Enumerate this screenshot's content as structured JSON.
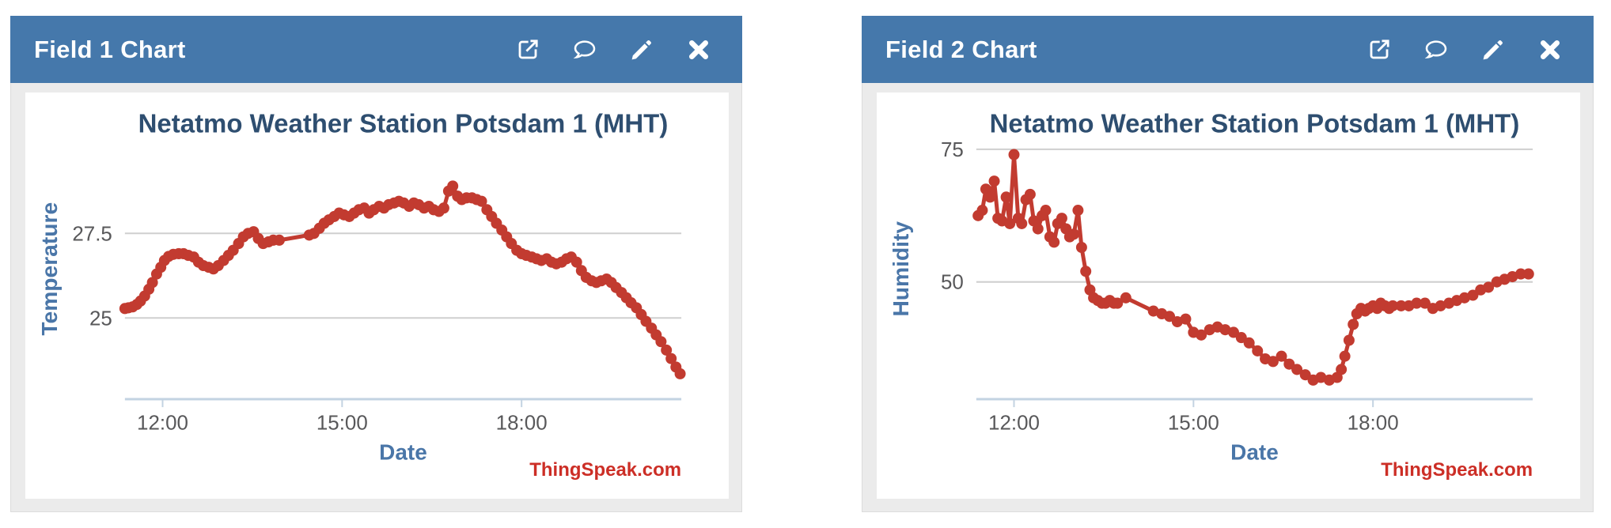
{
  "colors": {
    "header_bg": "#4578ab",
    "header_text": "#ffffff",
    "panel_frame": "#ebebeb",
    "chart_bg": "#ffffff",
    "series_red": "#c23b30",
    "chart_title": "#2e4e70",
    "axis_title_blue": "#4a76a8",
    "tick_gray": "#58585a",
    "grid_gray": "#cfcfcf",
    "axis_line_blue": "#c3d3e2",
    "watermark_red": "#cc2e26"
  },
  "widgets": [
    {
      "header": {
        "title": "Field 1 Chart",
        "icons": [
          "open-in-new-window-icon",
          "comment-icon",
          "edit-icon",
          "close-icon"
        ]
      }
    },
    {
      "header": {
        "title": "Field 2 Chart",
        "icons": [
          "open-in-new-window-icon",
          "comment-icon",
          "edit-icon",
          "close-icon"
        ]
      }
    }
  ],
  "chart_data": [
    {
      "type": "line",
      "title": "Netatmo Weather Station Potsdam 1 (MHT)",
      "xlabel": "Date",
      "ylabel": "Temperature",
      "watermark": "ThingSpeak.com",
      "legend": "none",
      "grid": "horizontal-only",
      "x_range": [
        11.37,
        20.67
      ],
      "x_ticks": [
        {
          "value": 12,
          "label": "12:00"
        },
        {
          "value": 15,
          "label": "15:00"
        },
        {
          "value": 18,
          "label": "18:00"
        }
      ],
      "y_range": [
        22.6,
        30.3
      ],
      "y_gridlines": [
        {
          "value": 25,
          "label": "25"
        },
        {
          "value": 27.5,
          "label": "27.5"
        }
      ],
      "series": [
        {
          "color": "#c23b30",
          "points": [
            [
              11.37,
              25.28
            ],
            [
              11.43,
              25.3
            ],
            [
              11.5,
              25.33
            ],
            [
              11.57,
              25.4
            ],
            [
              11.63,
              25.5
            ],
            [
              11.7,
              25.65
            ],
            [
              11.77,
              25.85
            ],
            [
              11.83,
              26.05
            ],
            [
              11.9,
              26.3
            ],
            [
              11.97,
              26.5
            ],
            [
              12.03,
              26.7
            ],
            [
              12.1,
              26.82
            ],
            [
              12.18,
              26.88
            ],
            [
              12.27,
              26.9
            ],
            [
              12.35,
              26.9
            ],
            [
              12.43,
              26.85
            ],
            [
              12.52,
              26.8
            ],
            [
              12.6,
              26.65
            ],
            [
              12.68,
              26.55
            ],
            [
              12.77,
              26.5
            ],
            [
              12.85,
              26.45
            ],
            [
              12.93,
              26.55
            ],
            [
              13.02,
              26.7
            ],
            [
              13.1,
              26.85
            ],
            [
              13.18,
              27.0
            ],
            [
              13.27,
              27.2
            ],
            [
              13.35,
              27.4
            ],
            [
              13.43,
              27.5
            ],
            [
              13.52,
              27.55
            ],
            [
              13.6,
              27.35
            ],
            [
              13.68,
              27.2
            ],
            [
              13.77,
              27.25
            ],
            [
              13.85,
              27.3
            ],
            [
              13.95,
              27.3
            ],
            [
              14.45,
              27.45
            ],
            [
              14.53,
              27.5
            ],
            [
              14.62,
              27.65
            ],
            [
              14.7,
              27.8
            ],
            [
              14.78,
              27.9
            ],
            [
              14.87,
              28.0
            ],
            [
              14.95,
              28.1
            ],
            [
              15.03,
              28.05
            ],
            [
              15.12,
              28.0
            ],
            [
              15.2,
              28.1
            ],
            [
              15.28,
              28.2
            ],
            [
              15.37,
              28.25
            ],
            [
              15.45,
              28.1
            ],
            [
              15.53,
              28.2
            ],
            [
              15.62,
              28.3
            ],
            [
              15.7,
              28.25
            ],
            [
              15.78,
              28.35
            ],
            [
              15.87,
              28.4
            ],
            [
              15.95,
              28.45
            ],
            [
              16.03,
              28.4
            ],
            [
              16.12,
              28.3
            ],
            [
              16.2,
              28.4
            ],
            [
              16.28,
              28.35
            ],
            [
              16.37,
              28.25
            ],
            [
              16.45,
              28.3
            ],
            [
              16.53,
              28.2
            ],
            [
              16.62,
              28.15
            ],
            [
              16.7,
              28.25
            ],
            [
              16.78,
              28.75
            ],
            [
              16.85,
              28.9
            ],
            [
              16.93,
              28.6
            ],
            [
              17.0,
              28.5
            ],
            [
              17.08,
              28.55
            ],
            [
              17.17,
              28.55
            ],
            [
              17.25,
              28.5
            ],
            [
              17.33,
              28.45
            ],
            [
              17.42,
              28.2
            ],
            [
              17.5,
              28.0
            ],
            [
              17.58,
              27.8
            ],
            [
              17.67,
              27.6
            ],
            [
              17.75,
              27.4
            ],
            [
              17.83,
              27.2
            ],
            [
              17.92,
              27.0
            ],
            [
              18.0,
              26.9
            ],
            [
              18.08,
              26.85
            ],
            [
              18.17,
              26.8
            ],
            [
              18.25,
              26.75
            ],
            [
              18.33,
              26.7
            ],
            [
              18.42,
              26.75
            ],
            [
              18.5,
              26.65
            ],
            [
              18.58,
              26.6
            ],
            [
              18.67,
              26.65
            ],
            [
              18.75,
              26.75
            ],
            [
              18.83,
              26.8
            ],
            [
              18.92,
              26.65
            ],
            [
              19.0,
              26.4
            ],
            [
              19.08,
              26.2
            ],
            [
              19.17,
              26.1
            ],
            [
              19.25,
              26.05
            ],
            [
              19.33,
              26.1
            ],
            [
              19.42,
              26.15
            ],
            [
              19.5,
              26.05
            ],
            [
              19.58,
              25.9
            ],
            [
              19.67,
              25.75
            ],
            [
              19.75,
              25.6
            ],
            [
              19.83,
              25.45
            ],
            [
              19.92,
              25.3
            ],
            [
              20.0,
              25.1
            ],
            [
              20.08,
              24.9
            ],
            [
              20.17,
              24.7
            ],
            [
              20.25,
              24.5
            ],
            [
              20.33,
              24.3
            ],
            [
              20.42,
              24.05
            ],
            [
              20.5,
              23.8
            ],
            [
              20.58,
              23.55
            ],
            [
              20.65,
              23.35
            ]
          ]
        }
      ]
    },
    {
      "type": "line",
      "title": "Netatmo Weather Station Potsdam 1 (MHT)",
      "xlabel": "Date",
      "ylabel": "Humidity",
      "watermark": "ThingSpeak.com",
      "legend": "none",
      "grid": "horizontal-only",
      "x_range": [
        11.37,
        20.67
      ],
      "x_ticks": [
        {
          "value": 12,
          "label": "12:00"
        },
        {
          "value": 15,
          "label": "15:00"
        },
        {
          "value": 18,
          "label": "18:00"
        }
      ],
      "y_range": [
        27.9,
        77.0
      ],
      "y_gridlines": [
        {
          "value": 50,
          "label": "50"
        },
        {
          "value": 75,
          "label": "75"
        }
      ],
      "series": [
        {
          "color": "#c23b30",
          "points": [
            [
              11.4,
              62.5
            ],
            [
              11.47,
              63.5
            ],
            [
              11.53,
              67.5
            ],
            [
              11.6,
              66.0
            ],
            [
              11.67,
              69.0
            ],
            [
              11.73,
              62.0
            ],
            [
              11.8,
              61.5
            ],
            [
              11.87,
              66.0
            ],
            [
              11.93,
              61.0
            ],
            [
              12.0,
              74.0
            ],
            [
              12.07,
              62.0
            ],
            [
              12.13,
              61.0
            ],
            [
              12.2,
              65.5
            ],
            [
              12.27,
              66.5
            ],
            [
              12.33,
              61.5
            ],
            [
              12.4,
              60.0
            ],
            [
              12.47,
              62.5
            ],
            [
              12.53,
              63.5
            ],
            [
              12.6,
              58.5
            ],
            [
              12.67,
              57.5
            ],
            [
              12.73,
              61.0
            ],
            [
              12.8,
              62.0
            ],
            [
              12.87,
              60.0
            ],
            [
              12.93,
              58.5
            ],
            [
              13.0,
              59.0
            ],
            [
              13.07,
              63.5
            ],
            [
              13.13,
              56.5
            ],
            [
              13.2,
              52.0
            ],
            [
              13.27,
              48.5
            ],
            [
              13.33,
              47.0
            ],
            [
              13.4,
              46.5
            ],
            [
              13.47,
              46.0
            ],
            [
              13.53,
              46.0
            ],
            [
              13.6,
              46.5
            ],
            [
              13.67,
              46.0
            ],
            [
              13.73,
              46.0
            ],
            [
              13.87,
              47.0
            ],
            [
              14.33,
              44.5
            ],
            [
              14.47,
              44.0
            ],
            [
              14.6,
              43.5
            ],
            [
              14.73,
              42.5
            ],
            [
              14.87,
              43.0
            ],
            [
              15.0,
              40.5
            ],
            [
              15.13,
              40.0
            ],
            [
              15.27,
              41.0
            ],
            [
              15.4,
              41.5
            ],
            [
              15.53,
              41.0
            ],
            [
              15.67,
              40.5
            ],
            [
              15.8,
              39.5
            ],
            [
              15.93,
              38.5
            ],
            [
              16.07,
              37.0
            ],
            [
              16.2,
              35.5
            ],
            [
              16.33,
              35.0
            ],
            [
              16.47,
              36.0
            ],
            [
              16.6,
              34.5
            ],
            [
              16.73,
              33.5
            ],
            [
              16.87,
              32.5
            ],
            [
              17.0,
              31.5
            ],
            [
              17.13,
              32.0
            ],
            [
              17.27,
              31.5
            ],
            [
              17.4,
              32.0
            ],
            [
              17.47,
              33.5
            ],
            [
              17.53,
              36.0
            ],
            [
              17.6,
              39.0
            ],
            [
              17.67,
              42.0
            ],
            [
              17.73,
              44.0
            ],
            [
              17.8,
              45.0
            ],
            [
              17.87,
              44.5
            ],
            [
              17.93,
              45.0
            ],
            [
              18.0,
              45.5
            ],
            [
              18.07,
              45.0
            ],
            [
              18.13,
              46.0
            ],
            [
              18.2,
              45.5
            ],
            [
              18.27,
              45.0
            ],
            [
              18.33,
              45.5
            ],
            [
              18.47,
              45.5
            ],
            [
              18.6,
              45.5
            ],
            [
              18.73,
              46.0
            ],
            [
              18.87,
              46.0
            ],
            [
              19.0,
              45.0
            ],
            [
              19.13,
              45.5
            ],
            [
              19.27,
              46.0
            ],
            [
              19.4,
              46.5
            ],
            [
              19.53,
              47.0
            ],
            [
              19.67,
              47.5
            ],
            [
              19.8,
              48.5
            ],
            [
              19.93,
              49.0
            ],
            [
              20.07,
              50.0
            ],
            [
              20.2,
              50.5
            ],
            [
              20.33,
              51.0
            ],
            [
              20.47,
              51.5
            ],
            [
              20.6,
              51.5
            ]
          ]
        }
      ]
    }
  ]
}
